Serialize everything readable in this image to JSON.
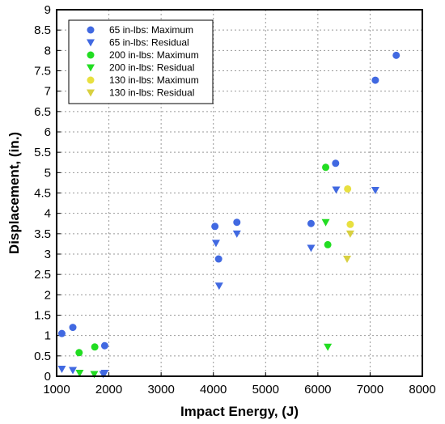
{
  "chart_data": {
    "type": "scatter",
    "xlabel": "Impact Energy, (J)",
    "ylabel": "Displacement, (in.)",
    "xlim": [
      1000,
      8000
    ],
    "ylim": [
      0,
      9
    ],
    "xticks": [
      1000,
      2000,
      3000,
      4000,
      5000,
      6000,
      7000,
      8000
    ],
    "yticks": [
      0,
      0.5,
      1,
      1.5,
      2,
      2.5,
      3,
      3.5,
      4,
      4.5,
      5,
      5.5,
      6,
      6.5,
      7,
      7.5,
      8,
      8.5,
      9
    ],
    "grid": true,
    "legend_position": "top-left",
    "series": [
      {
        "name": "65 in-lbs: Maximum",
        "marker": "circle",
        "color": "#4169E1",
        "points": [
          [
            1100,
            1.05
          ],
          [
            1310,
            1.2
          ],
          [
            1920,
            0.75
          ],
          [
            4030,
            3.68
          ],
          [
            4100,
            2.88
          ],
          [
            4450,
            3.78
          ],
          [
            5870,
            3.75
          ],
          [
            6340,
            5.23
          ],
          [
            7100,
            7.27
          ],
          [
            7500,
            7.88
          ]
        ]
      },
      {
        "name": "65 in-lbs: Residual",
        "marker": "triangle-down",
        "color": "#4169E1",
        "points": [
          [
            1100,
            0.18
          ],
          [
            1310,
            0.15
          ],
          [
            1890,
            0.05
          ],
          [
            1920,
            0.08
          ],
          [
            4050,
            3.27
          ],
          [
            4110,
            2.22
          ],
          [
            4450,
            3.5
          ],
          [
            5870,
            3.15
          ],
          [
            6350,
            4.58
          ],
          [
            7100,
            4.57
          ]
        ]
      },
      {
        "name": "200 in-lbs: Maximum",
        "marker": "circle",
        "color": "#22DD22",
        "points": [
          [
            1430,
            0.58
          ],
          [
            1730,
            0.72
          ],
          [
            6150,
            5.13
          ],
          [
            6190,
            3.23
          ]
        ]
      },
      {
        "name": "200 in-lbs: Residual",
        "marker": "triangle-down",
        "color": "#22DD22",
        "points": [
          [
            1440,
            0.08
          ],
          [
            1720,
            0.05
          ],
          [
            6150,
            3.78
          ],
          [
            6190,
            0.72
          ]
        ]
      },
      {
        "name": "130 in-lbs: Maximum",
        "marker": "circle",
        "color": "#E8E040",
        "points": [
          [
            6570,
            4.6
          ],
          [
            6620,
            3.73
          ]
        ]
      },
      {
        "name": "130 in-lbs: Residual",
        "marker": "triangle-down",
        "color": "#D8D040",
        "points": [
          [
            6560,
            2.88
          ],
          [
            6620,
            3.5
          ]
        ]
      }
    ]
  }
}
